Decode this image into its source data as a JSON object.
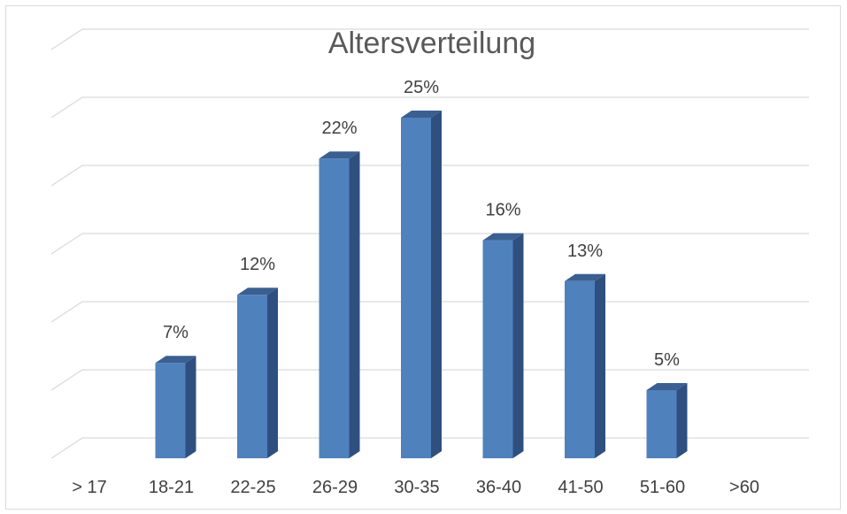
{
  "chart_data": {
    "type": "bar",
    "style": "3d-column",
    "title": "Altersverteilung",
    "categories": [
      "> 17",
      "18-21",
      "22-25",
      "26-29",
      "30-35",
      "36-40",
      "41-50",
      "51-60",
      ">60"
    ],
    "values": [
      0,
      7,
      12,
      22,
      25,
      16,
      13,
      5,
      0
    ],
    "data_labels": [
      "",
      "7%",
      "12%",
      "22%",
      "25%",
      "16%",
      "13%",
      "5%",
      ""
    ],
    "unit": "%",
    "ylim": [
      0,
      30
    ],
    "gridlines": true,
    "y_axis_labels_visible": false,
    "legend": "none",
    "colors": {
      "bar_front": "#4f81bd",
      "bar_side": "#2f4f7f",
      "bar_top": "#3a5f90",
      "grid": "#d9d9d9",
      "text": "#404040"
    }
  }
}
